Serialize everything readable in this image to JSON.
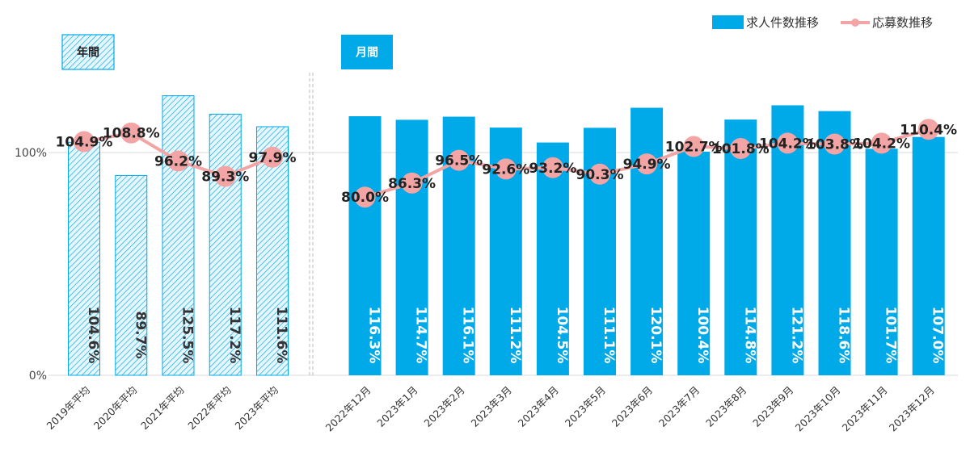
{
  "chart_data": {
    "type": "bar+line",
    "legend": {
      "position": "top-right",
      "bar_series": "求人件数推移",
      "line_series": "応募数推移"
    },
    "y_ticks": [
      "100%",
      "0%"
    ],
    "ylim": [
      0,
      150
    ],
    "colors": {
      "bar": "#00a9e8",
      "hatch": "#00a9e8",
      "line": "#f3a5a5",
      "grid": "#d9d9d9",
      "divider": "#bbbbbb"
    },
    "panels": [
      {
        "label": "年間",
        "style": "hatched",
        "categories": [
          "2019年平均",
          "2020年平均",
          "2021年平均",
          "2022年平均",
          "2023年平均"
        ],
        "bar_values": [
          104.6,
          89.7,
          125.5,
          117.2,
          111.6
        ],
        "bar_labels": [
          "104.6%",
          "89.7%",
          "125.5%",
          "117.2%",
          "111.6%"
        ],
        "line_values": [
          104.9,
          108.8,
          96.2,
          89.3,
          97.9
        ],
        "line_labels": [
          "104.9%",
          "108.8%",
          "96.2%",
          "89.3%",
          "97.9%"
        ]
      },
      {
        "label": "月間",
        "style": "solid",
        "categories": [
          "2022年12月",
          "2023年1月",
          "2023年2月",
          "2023年3月",
          "2023年4月",
          "2023年5月",
          "2023年6月",
          "2023年7月",
          "2023年8月",
          "2023年9月",
          "2023年10月",
          "2023年11月",
          "2023年12月"
        ],
        "bar_values": [
          116.3,
          114.7,
          116.1,
          111.2,
          104.5,
          111.1,
          120.1,
          100.4,
          114.8,
          121.2,
          118.6,
          101.7,
          107.0
        ],
        "bar_labels": [
          "116.3%",
          "114.7%",
          "116.1%",
          "111.2%",
          "104.5%",
          "111.1%",
          "120.1%",
          "100.4%",
          "114.8%",
          "121.2%",
          "118.6%",
          "101.7%",
          "107.0%"
        ],
        "line_values": [
          80.0,
          86.3,
          96.5,
          92.6,
          93.2,
          90.3,
          94.9,
          102.7,
          101.8,
          104.2,
          103.8,
          104.2,
          110.4
        ],
        "line_labels": [
          "80.0%",
          "86.3%",
          "96.5%",
          "92.6%",
          "93.2%",
          "90.3%",
          "94.9%",
          "102.7%",
          "101.8%",
          "104.2%",
          "103.8%",
          "104.2%",
          "110.4%"
        ]
      }
    ]
  }
}
